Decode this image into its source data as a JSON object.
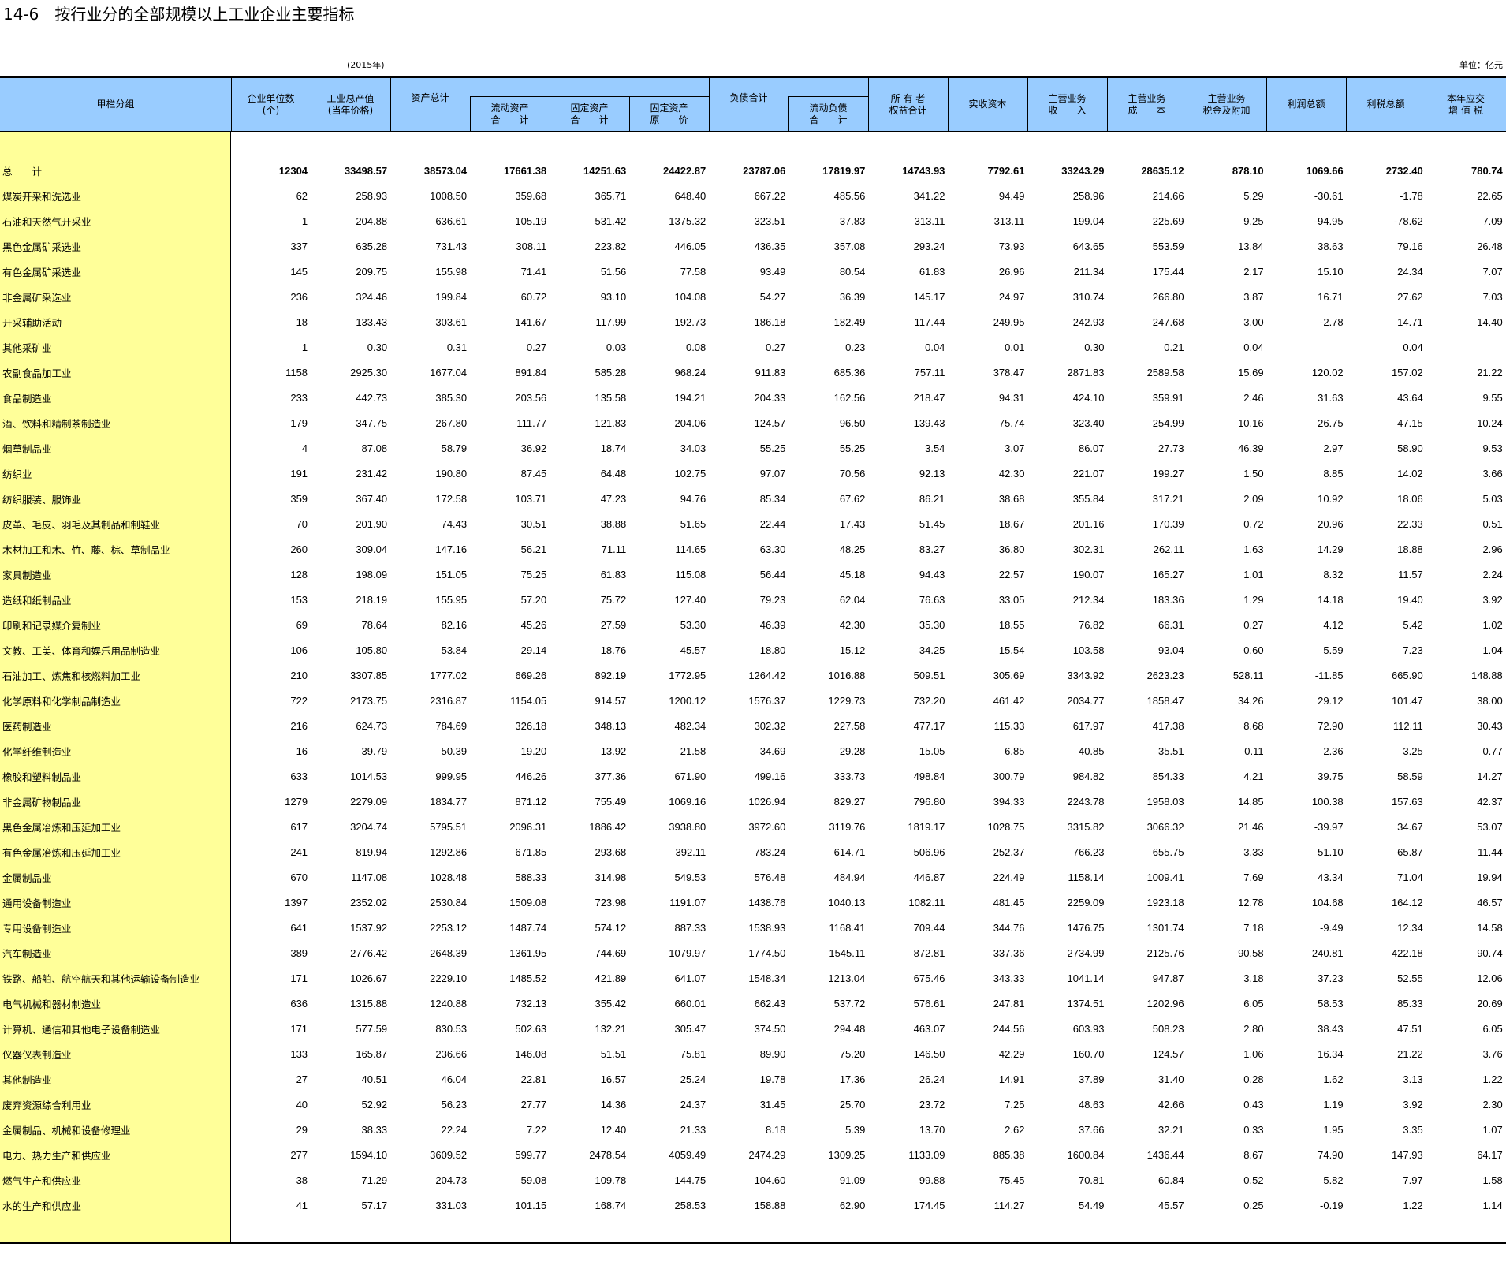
{
  "title": "14-6　按行业分的全部规模以上工业企业主要指标",
  "year": "(2015年)",
  "unit": "单位：亿元",
  "headers": {
    "group": "甲栏分组",
    "units": "企业单位数\n(个)",
    "output": "工业总产值\n(当年价格)",
    "assets": "资产总计",
    "current_assets": "流动资产\n合　　计",
    "fixed_assets": "固定资产\n合　　计",
    "fixed_orig": "固定资产\n原　　价",
    "liabilities": "负债合计",
    "current_liab": "流动负债\n合　　计",
    "equity": "所 有 者\n权益合计",
    "paid_capital": "实收资本",
    "revenue": "主营业务\n收　　入",
    "cost": "主营业务\n成　　本",
    "tax_surcharge": "主营业务\n税金及附加",
    "profit": "利润总额",
    "profit_tax": "利税总额",
    "vat": "本年应交\n增 值 税"
  },
  "rows": [
    {
      "label": "总　　计",
      "values": [
        "12304",
        "33498.57",
        "38573.04",
        "17661.38",
        "14251.63",
        "24422.87",
        "23787.06",
        "17819.97",
        "14743.93",
        "7792.61",
        "33243.29",
        "28635.12",
        "878.10",
        "1069.66",
        "2732.40",
        "780.74"
      ]
    },
    {
      "label": "煤炭开采和洗选业",
      "values": [
        "62",
        "258.93",
        "1008.50",
        "359.68",
        "365.71",
        "648.40",
        "667.22",
        "485.56",
        "341.22",
        "94.49",
        "258.96",
        "214.66",
        "5.29",
        "-30.61",
        "-1.78",
        "22.65"
      ]
    },
    {
      "label": "石油和天然气开采业",
      "values": [
        "1",
        "204.88",
        "636.61",
        "105.19",
        "531.42",
        "1375.32",
        "323.51",
        "37.83",
        "313.11",
        "313.11",
        "199.04",
        "225.69",
        "9.25",
        "-94.95",
        "-78.62",
        "7.09"
      ]
    },
    {
      "label": "黑色金属矿采选业",
      "values": [
        "337",
        "635.28",
        "731.43",
        "308.11",
        "223.82",
        "446.05",
        "436.35",
        "357.08",
        "293.24",
        "73.93",
        "643.65",
        "553.59",
        "13.84",
        "38.63",
        "79.16",
        "26.48"
      ]
    },
    {
      "label": "有色金属矿采选业",
      "values": [
        "145",
        "209.75",
        "155.98",
        "71.41",
        "51.56",
        "77.58",
        "93.49",
        "80.54",
        "61.83",
        "26.96",
        "211.34",
        "175.44",
        "2.17",
        "15.10",
        "24.34",
        "7.07"
      ]
    },
    {
      "label": "非金属矿采选业",
      "values": [
        "236",
        "324.46",
        "199.84",
        "60.72",
        "93.10",
        "104.08",
        "54.27",
        "36.39",
        "145.17",
        "24.97",
        "310.74",
        "266.80",
        "3.87",
        "16.71",
        "27.62",
        "7.03"
      ]
    },
    {
      "label": "开采辅助活动",
      "values": [
        "18",
        "133.43",
        "303.61",
        "141.67",
        "117.99",
        "192.73",
        "186.18",
        "182.49",
        "117.44",
        "249.95",
        "242.93",
        "247.68",
        "3.00",
        "-2.78",
        "14.71",
        "14.40"
      ]
    },
    {
      "label": "其他采矿业",
      "values": [
        "1",
        "0.30",
        "0.31",
        "0.27",
        "0.03",
        "0.08",
        "0.27",
        "0.23",
        "0.04",
        "0.01",
        "0.30",
        "0.21",
        "0.04",
        "",
        "0.04",
        ""
      ]
    },
    {
      "label": "农副食品加工业",
      "values": [
        "1158",
        "2925.30",
        "1677.04",
        "891.84",
        "585.28",
        "968.24",
        "911.83",
        "685.36",
        "757.11",
        "378.47",
        "2871.83",
        "2589.58",
        "15.69",
        "120.02",
        "157.02",
        "21.22"
      ]
    },
    {
      "label": "食品制造业",
      "values": [
        "233",
        "442.73",
        "385.30",
        "203.56",
        "135.58",
        "194.21",
        "204.33",
        "162.56",
        "218.47",
        "94.31",
        "424.10",
        "359.91",
        "2.46",
        "31.63",
        "43.64",
        "9.55"
      ]
    },
    {
      "label": "酒、饮料和精制茶制造业",
      "values": [
        "179",
        "347.75",
        "267.80",
        "111.77",
        "121.83",
        "204.06",
        "124.57",
        "96.50",
        "139.43",
        "75.74",
        "323.40",
        "254.99",
        "10.16",
        "26.75",
        "47.15",
        "10.24"
      ]
    },
    {
      "label": "烟草制品业",
      "values": [
        "4",
        "87.08",
        "58.79",
        "36.92",
        "18.74",
        "34.03",
        "55.25",
        "55.25",
        "3.54",
        "3.07",
        "86.07",
        "27.73",
        "46.39",
        "2.97",
        "58.90",
        "9.53"
      ]
    },
    {
      "label": "纺织业",
      "values": [
        "191",
        "231.42",
        "190.80",
        "87.45",
        "64.48",
        "102.75",
        "97.07",
        "70.56",
        "92.13",
        "42.30",
        "221.07",
        "199.27",
        "1.50",
        "8.85",
        "14.02",
        "3.66"
      ]
    },
    {
      "label": "纺织服装、服饰业",
      "values": [
        "359",
        "367.40",
        "172.58",
        "103.71",
        "47.23",
        "94.76",
        "85.34",
        "67.62",
        "86.21",
        "38.68",
        "355.84",
        "317.21",
        "2.09",
        "10.92",
        "18.06",
        "5.03"
      ]
    },
    {
      "label": "皮革、毛皮、羽毛及其制品和制鞋业",
      "values": [
        "70",
        "201.90",
        "74.43",
        "30.51",
        "38.88",
        "51.65",
        "22.44",
        "17.43",
        "51.45",
        "18.67",
        "201.16",
        "170.39",
        "0.72",
        "20.96",
        "22.33",
        "0.51"
      ]
    },
    {
      "label": "木材加工和木、竹、藤、棕、草制品业",
      "values": [
        "260",
        "309.04",
        "147.16",
        "56.21",
        "71.11",
        "114.65",
        "63.30",
        "48.25",
        "83.27",
        "36.80",
        "302.31",
        "262.11",
        "1.63",
        "14.29",
        "18.88",
        "2.96"
      ]
    },
    {
      "label": "家具制造业",
      "values": [
        "128",
        "198.09",
        "151.05",
        "75.25",
        "61.83",
        "115.08",
        "56.44",
        "45.18",
        "94.43",
        "22.57",
        "190.07",
        "165.27",
        "1.01",
        "8.32",
        "11.57",
        "2.24"
      ]
    },
    {
      "label": "造纸和纸制品业",
      "values": [
        "153",
        "218.19",
        "155.95",
        "57.20",
        "75.72",
        "127.40",
        "79.23",
        "62.04",
        "76.63",
        "33.05",
        "212.34",
        "183.36",
        "1.29",
        "14.18",
        "19.40",
        "3.92"
      ]
    },
    {
      "label": "印刷和记录媒介复制业",
      "values": [
        "69",
        "78.64",
        "82.16",
        "45.26",
        "27.59",
        "53.30",
        "46.39",
        "42.30",
        "35.30",
        "18.55",
        "76.82",
        "66.31",
        "0.27",
        "4.12",
        "5.42",
        "1.02"
      ]
    },
    {
      "label": "文教、工美、体育和娱乐用品制造业",
      "values": [
        "106",
        "105.80",
        "53.84",
        "29.14",
        "18.76",
        "45.57",
        "18.80",
        "15.12",
        "34.25",
        "15.54",
        "103.58",
        "93.04",
        "0.60",
        "5.59",
        "7.23",
        "1.04"
      ]
    },
    {
      "label": "石油加工、炼焦和核燃料加工业",
      "values": [
        "210",
        "3307.85",
        "1777.02",
        "669.26",
        "892.19",
        "1772.95",
        "1264.42",
        "1016.88",
        "509.51",
        "305.69",
        "3343.92",
        "2623.23",
        "528.11",
        "-11.85",
        "665.90",
        "148.88"
      ]
    },
    {
      "label": "化学原料和化学制品制造业",
      "values": [
        "722",
        "2173.75",
        "2316.87",
        "1154.05",
        "914.57",
        "1200.12",
        "1576.37",
        "1229.73",
        "732.20",
        "461.42",
        "2034.77",
        "1858.47",
        "34.26",
        "29.12",
        "101.47",
        "38.00"
      ]
    },
    {
      "label": "医药制造业",
      "values": [
        "216",
        "624.73",
        "784.69",
        "326.18",
        "348.13",
        "482.34",
        "302.32",
        "227.58",
        "477.17",
        "115.33",
        "617.97",
        "417.38",
        "8.68",
        "72.90",
        "112.11",
        "30.43"
      ]
    },
    {
      "label": "化学纤维制造业",
      "values": [
        "16",
        "39.79",
        "50.39",
        "19.20",
        "13.92",
        "21.58",
        "34.69",
        "29.28",
        "15.05",
        "6.85",
        "40.85",
        "35.51",
        "0.11",
        "2.36",
        "3.25",
        "0.77"
      ]
    },
    {
      "label": "橡胶和塑料制品业",
      "values": [
        "633",
        "1014.53",
        "999.95",
        "446.26",
        "377.36",
        "671.90",
        "499.16",
        "333.73",
        "498.84",
        "300.79",
        "984.82",
        "854.33",
        "4.21",
        "39.75",
        "58.59",
        "14.27"
      ]
    },
    {
      "label": "非金属矿物制品业",
      "values": [
        "1279",
        "2279.09",
        "1834.77",
        "871.12",
        "755.49",
        "1069.16",
        "1026.94",
        "829.27",
        "796.80",
        "394.33",
        "2243.78",
        "1958.03",
        "14.85",
        "100.38",
        "157.63",
        "42.37"
      ]
    },
    {
      "label": "黑色金属冶炼和压延加工业",
      "values": [
        "617",
        "3204.74",
        "5795.51",
        "2096.31",
        "1886.42",
        "3938.80",
        "3972.60",
        "3119.76",
        "1819.17",
        "1028.75",
        "3315.82",
        "3066.32",
        "21.46",
        "-39.97",
        "34.67",
        "53.07"
      ]
    },
    {
      "label": "有色金属冶炼和压延加工业",
      "values": [
        "241",
        "819.94",
        "1292.86",
        "671.85",
        "293.68",
        "392.11",
        "783.24",
        "614.71",
        "506.96",
        "252.37",
        "766.23",
        "655.75",
        "3.33",
        "51.10",
        "65.87",
        "11.44"
      ]
    },
    {
      "label": "金属制品业",
      "values": [
        "670",
        "1147.08",
        "1028.48",
        "588.33",
        "314.98",
        "549.53",
        "576.48",
        "484.94",
        "446.87",
        "224.49",
        "1158.14",
        "1009.41",
        "7.69",
        "43.34",
        "71.04",
        "19.94"
      ]
    },
    {
      "label": "通用设备制造业",
      "values": [
        "1397",
        "2352.02",
        "2530.84",
        "1509.08",
        "723.98",
        "1191.07",
        "1438.76",
        "1040.13",
        "1082.11",
        "481.45",
        "2259.09",
        "1923.18",
        "12.78",
        "104.68",
        "164.12",
        "46.57"
      ]
    },
    {
      "label": "专用设备制造业",
      "values": [
        "641",
        "1537.92",
        "2253.12",
        "1487.74",
        "574.12",
        "887.33",
        "1538.93",
        "1168.41",
        "709.44",
        "344.76",
        "1476.75",
        "1301.74",
        "7.18",
        "-9.49",
        "12.34",
        "14.58"
      ]
    },
    {
      "label": "汽车制造业",
      "values": [
        "389",
        "2776.42",
        "2648.39",
        "1361.95",
        "744.69",
        "1079.97",
        "1774.50",
        "1545.11",
        "872.81",
        "337.36",
        "2734.99",
        "2125.76",
        "90.58",
        "240.81",
        "422.18",
        "90.74"
      ]
    },
    {
      "label": "铁路、船舶、航空航天和其他运输设备制造业",
      "values": [
        "171",
        "1026.67",
        "2229.10",
        "1485.52",
        "421.89",
        "641.07",
        "1548.34",
        "1213.04",
        "675.46",
        "343.33",
        "1041.14",
        "947.87",
        "3.18",
        "37.23",
        "52.55",
        "12.06"
      ]
    },
    {
      "label": "电气机械和器材制造业",
      "values": [
        "636",
        "1315.88",
        "1240.88",
        "732.13",
        "355.42",
        "660.01",
        "662.43",
        "537.72",
        "576.61",
        "247.81",
        "1374.51",
        "1202.96",
        "6.05",
        "58.53",
        "85.33",
        "20.69"
      ]
    },
    {
      "label": "计算机、通信和其他电子设备制造业",
      "values": [
        "171",
        "577.59",
        "830.53",
        "502.63",
        "132.21",
        "305.47",
        "374.50",
        "294.48",
        "463.07",
        "244.56",
        "603.93",
        "508.23",
        "2.80",
        "38.43",
        "47.51",
        "6.05"
      ]
    },
    {
      "label": "仪器仪表制造业",
      "values": [
        "133",
        "165.87",
        "236.66",
        "146.08",
        "51.51",
        "75.81",
        "89.90",
        "75.20",
        "146.50",
        "42.29",
        "160.70",
        "124.57",
        "1.06",
        "16.34",
        "21.22",
        "3.76"
      ]
    },
    {
      "label": "其他制造业",
      "values": [
        "27",
        "40.51",
        "46.04",
        "22.81",
        "16.57",
        "25.24",
        "19.78",
        "17.36",
        "26.24",
        "14.91",
        "37.89",
        "31.40",
        "0.28",
        "1.62",
        "3.13",
        "1.22"
      ]
    },
    {
      "label": "废弃资源综合利用业",
      "values": [
        "40",
        "52.92",
        "56.23",
        "27.77",
        "14.36",
        "24.37",
        "31.45",
        "25.70",
        "23.72",
        "7.25",
        "48.63",
        "42.66",
        "0.43",
        "1.19",
        "3.92",
        "2.30"
      ]
    },
    {
      "label": "金属制品、机械和设备修理业",
      "values": [
        "29",
        "38.33",
        "22.24",
        "7.22",
        "12.40",
        "21.33",
        "8.18",
        "5.39",
        "13.70",
        "2.62",
        "37.66",
        "32.21",
        "0.33",
        "1.95",
        "3.35",
        "1.07"
      ]
    },
    {
      "label": "电力、热力生产和供应业",
      "values": [
        "277",
        "1594.10",
        "3609.52",
        "599.77",
        "2478.54",
        "4059.49",
        "2474.29",
        "1309.25",
        "1133.09",
        "885.38",
        "1600.84",
        "1436.44",
        "8.67",
        "74.90",
        "147.93",
        "64.17"
      ]
    },
    {
      "label": "燃气生产和供应业",
      "values": [
        "38",
        "71.29",
        "204.73",
        "59.08",
        "109.78",
        "144.75",
        "104.60",
        "91.09",
        "99.88",
        "75.45",
        "70.81",
        "60.84",
        "0.52",
        "5.82",
        "7.97",
        "1.58"
      ]
    },
    {
      "label": "水的生产和供应业",
      "values": [
        "41",
        "57.17",
        "331.03",
        "101.15",
        "168.74",
        "258.53",
        "158.88",
        "62.90",
        "174.45",
        "114.27",
        "54.49",
        "45.57",
        "0.25",
        "-0.19",
        "1.22",
        "1.14"
      ]
    }
  ],
  "colors": {
    "header_bg": "#99CCFF",
    "label_col_bg": "#FFFF99"
  }
}
